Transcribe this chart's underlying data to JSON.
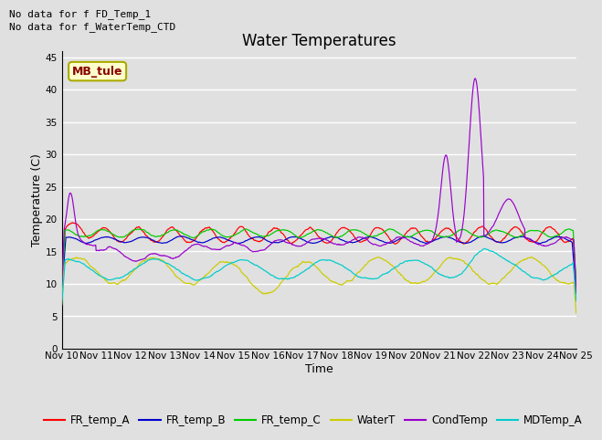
{
  "title": "Water Temperatures",
  "xlabel": "Time",
  "ylabel": "Temperature (C)",
  "ylim": [
    0,
    46
  ],
  "yticks": [
    0,
    5,
    10,
    15,
    20,
    25,
    30,
    35,
    40,
    45
  ],
  "xtick_labels": [
    "Nov 10",
    "Nov 11",
    "Nov 12",
    "Nov 13",
    "Nov 14",
    "Nov 15",
    "Nov 16",
    "Nov 17",
    "Nov 18",
    "Nov 19",
    "Nov 20",
    "Nov 21",
    "Nov 22",
    "Nov 23",
    "Nov 24",
    "Nov 25"
  ],
  "annotations": [
    "No data for f FD_Temp_1",
    "No data for f_WaterTemp_CTD"
  ],
  "box_label": "MB_tule",
  "series_colors": {
    "FR_temp_A": "#ff0000",
    "FR_temp_B": "#0000cc",
    "FR_temp_C": "#00cc00",
    "WaterT": "#cccc00",
    "CondTemp": "#9900cc",
    "MDTemp_A": "#00cccc"
  },
  "bg_color": "#e0e0e0",
  "grid_color": "#ffffff",
  "title_fontsize": 12,
  "axis_label_fontsize": 9,
  "tick_fontsize": 7.5,
  "legend_fontsize": 8.5,
  "annot_fontsize": 8
}
